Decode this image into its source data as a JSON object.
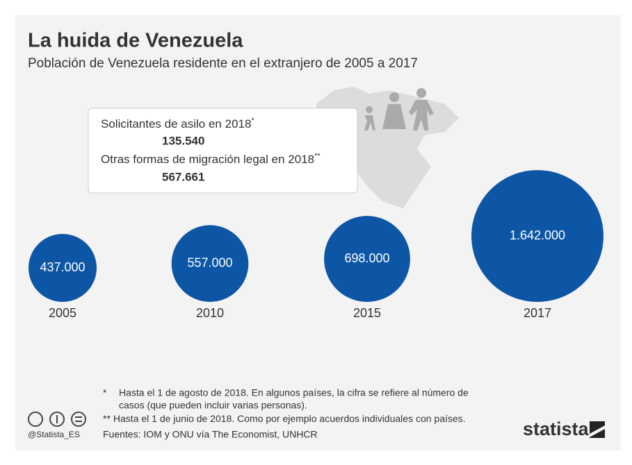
{
  "chart_data": {
    "type": "bubble",
    "title": "La huida de Venezuela",
    "subtitle": "Población de Venezuela residente en el extranjero de 2005 a 2017",
    "categories": [
      "2005",
      "2010",
      "2015",
      "2017"
    ],
    "values": [
      437000,
      557000,
      698000,
      1642000
    ],
    "value_labels": [
      "437.000",
      "557.000",
      "698.000",
      "1.642.000"
    ],
    "color": "#0c56a5",
    "callout": [
      {
        "label": "Solicitantes de asilo en 2018",
        "mark": "*",
        "figure": "135.540"
      },
      {
        "label": "Otras formas de migración legal en 2018",
        "mark": "**",
        "figure": "567.661"
      }
    ],
    "notes": [
      {
        "mark": "*",
        "lines": [
          "Hasta el 1 de agosto de 2018. En algunos países, la cifra se refiere al número de",
          "casos (que pueden incluir varias personas)."
        ]
      },
      {
        "mark": "**",
        "lines": [
          "Hasta el 1 de junio de 2018. Como por ejemplo acuerdos individuales con países."
        ]
      }
    ],
    "source": "Fuentes: IOM y ONU vía The Economist, UNHCR",
    "handle": "@Statista_ES",
    "brand": "statista"
  }
}
